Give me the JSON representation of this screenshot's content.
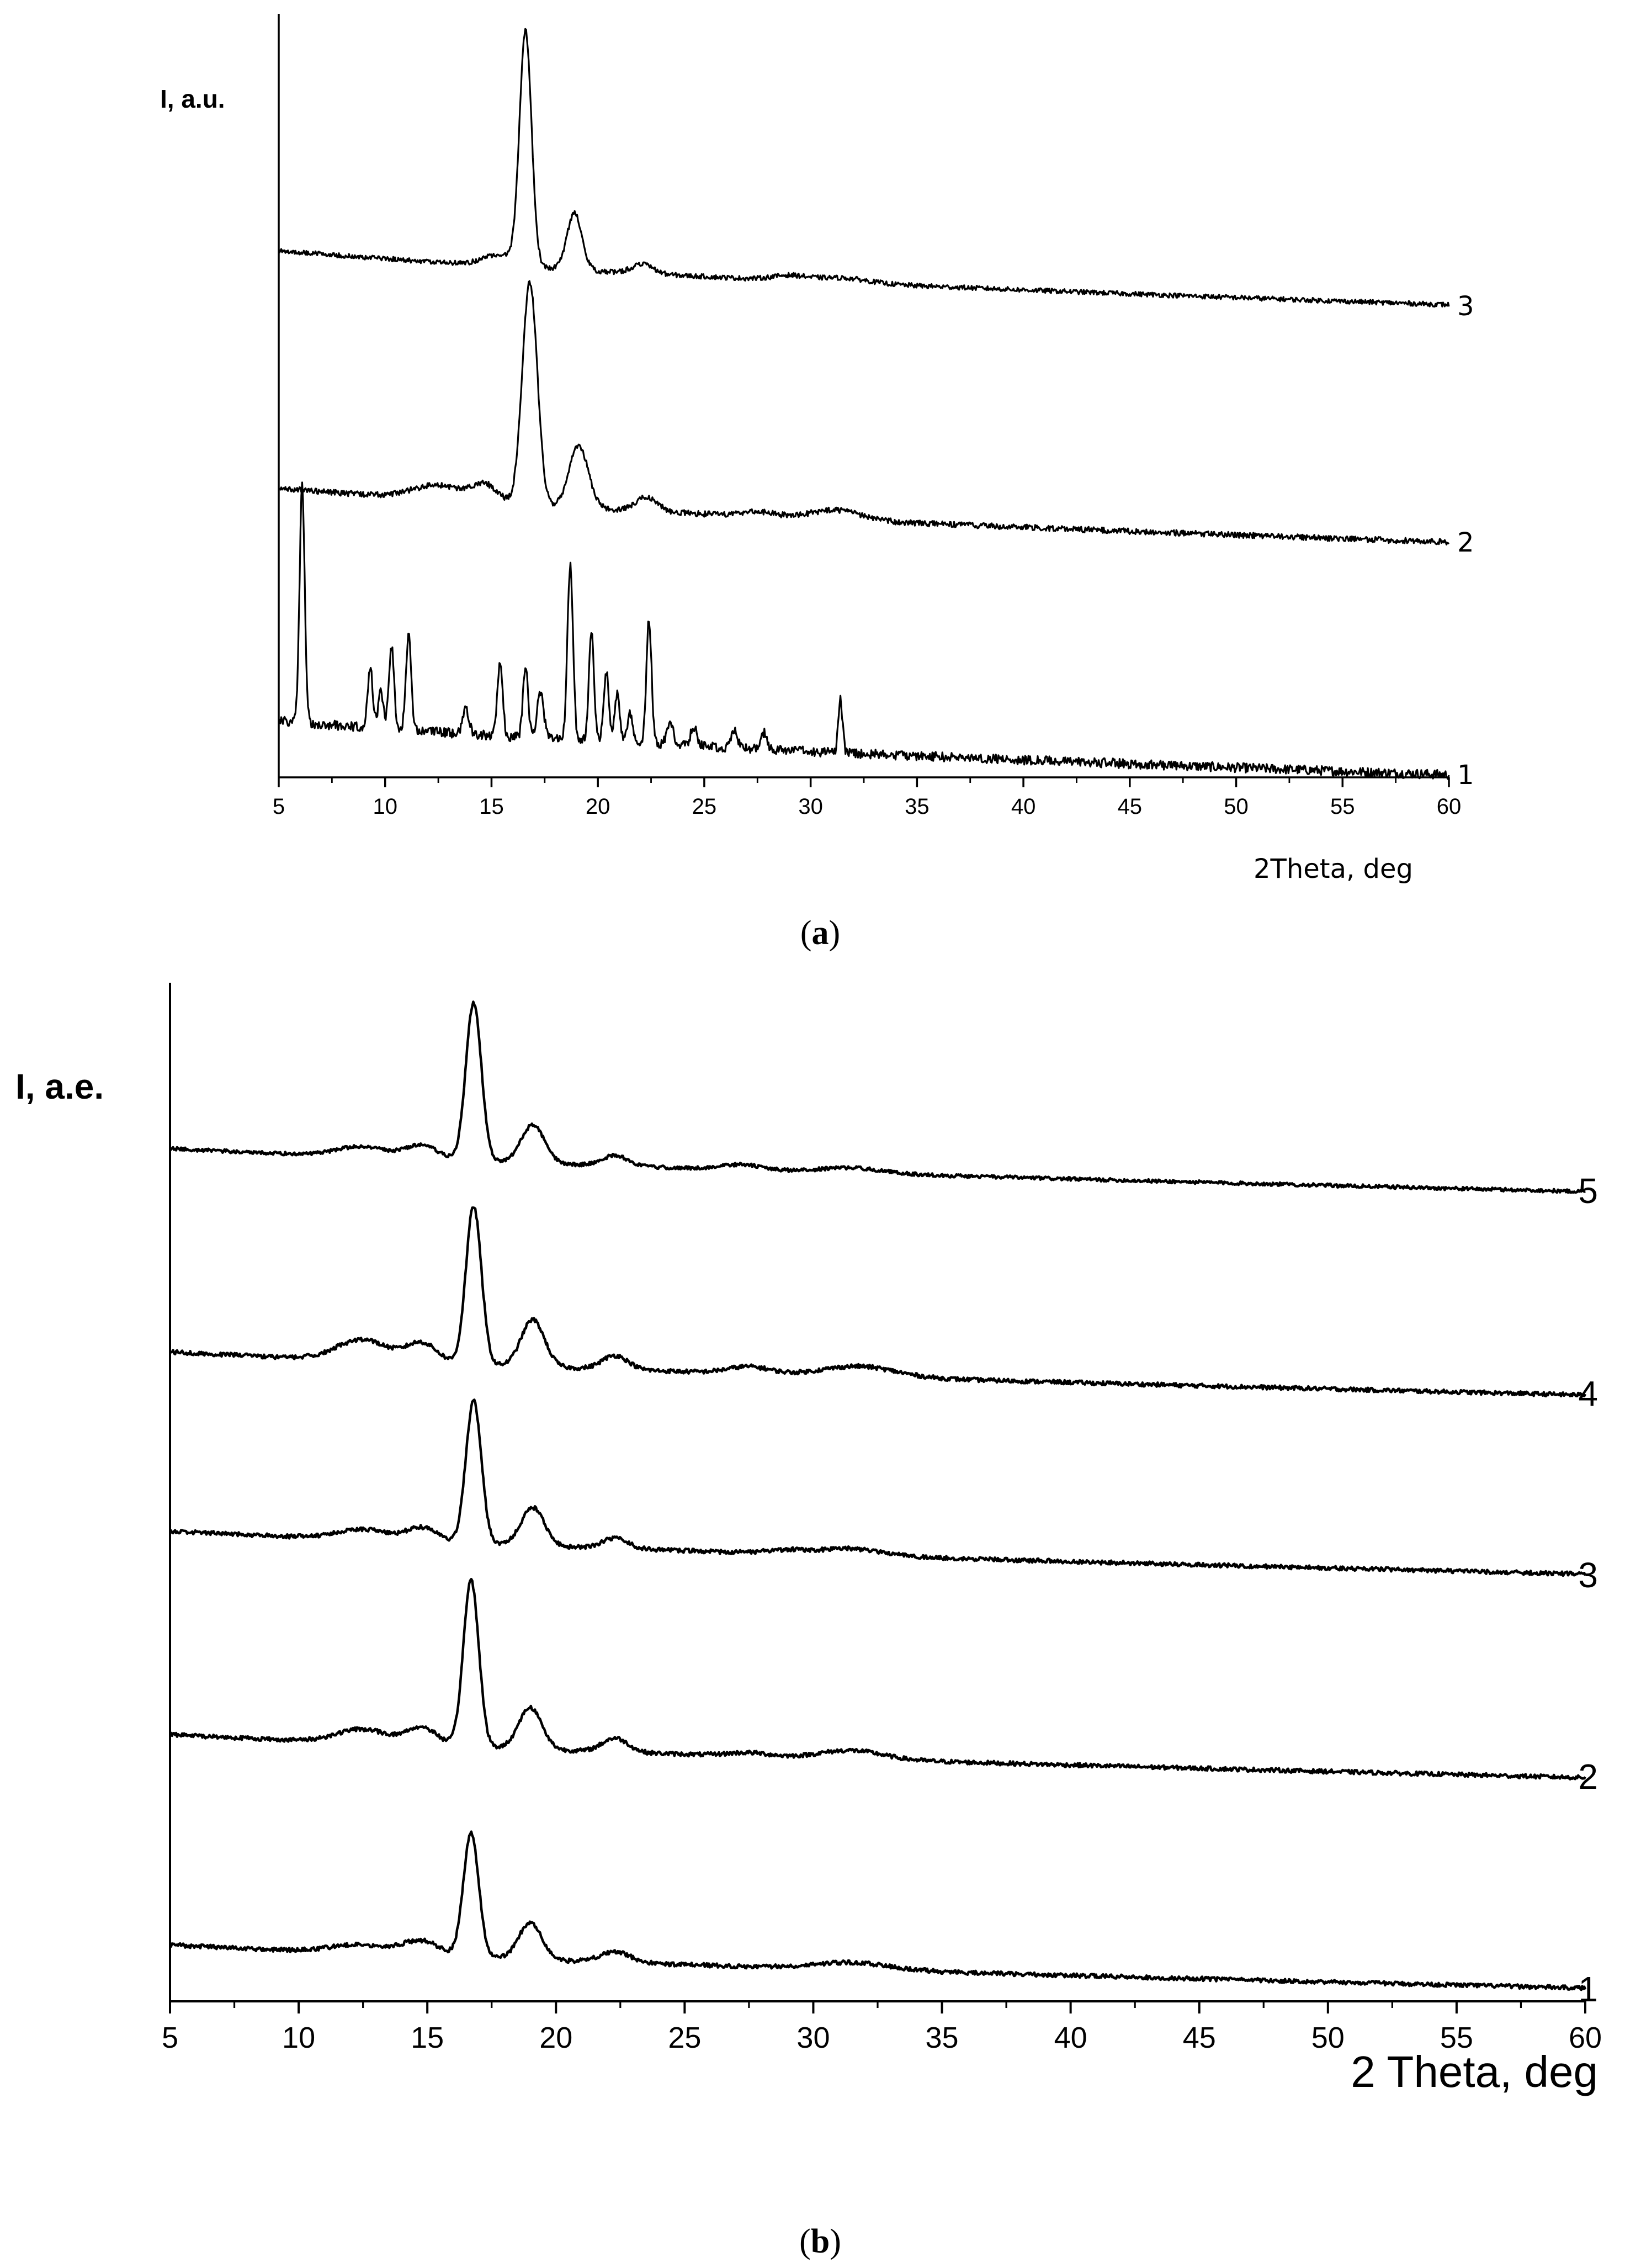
{
  "chart_data": [
    {
      "panel": "a",
      "type": "line",
      "ylabel": "I, a.u.",
      "xlabel": "2Theta, deg",
      "xlim": [
        5,
        60
      ],
      "xticks": [
        5,
        10,
        15,
        20,
        25,
        30,
        35,
        40,
        45,
        50,
        55,
        60
      ],
      "grid": false,
      "series": [
        {
          "name": "1",
          "offset": 0.0,
          "peaks": [
            [
              6.1,
              1.0,
              0.12
            ],
            [
              9.3,
              0.25,
              0.12
            ],
            [
              9.8,
              0.15,
              0.12
            ],
            [
              10.3,
              0.35,
              0.12
            ],
            [
              11.1,
              0.4,
              0.12
            ],
            [
              13.8,
              0.1,
              0.15
            ],
            [
              15.4,
              0.32,
              0.12
            ],
            [
              16.6,
              0.3,
              0.12
            ],
            [
              17.3,
              0.2,
              0.15
            ],
            [
              18.7,
              0.73,
              0.13
            ],
            [
              19.7,
              0.45,
              0.12
            ],
            [
              20.4,
              0.3,
              0.12
            ],
            [
              20.9,
              0.2,
              0.12
            ],
            [
              21.5,
              0.12,
              0.12
            ],
            [
              22.4,
              0.53,
              0.12
            ],
            [
              23.4,
              0.1,
              0.15
            ],
            [
              24.5,
              0.08,
              0.15
            ],
            [
              26.4,
              0.08,
              0.15
            ],
            [
              27.8,
              0.07,
              0.12
            ],
            [
              31.4,
              0.22,
              0.1
            ]
          ],
          "noise": 0.02
        },
        {
          "name": "2",
          "offset": 0.98,
          "peaks": [
            [
              12.5,
              0.06,
              1.2
            ],
            [
              14.7,
              0.07,
              0.6
            ],
            [
              16.8,
              0.94,
              0.35
            ],
            [
              19.1,
              0.26,
              0.45
            ],
            [
              22.3,
              0.06,
              0.5
            ],
            [
              27.5,
              0.02,
              0.8
            ],
            [
              31.2,
              0.04,
              1.2
            ]
          ],
          "noise": 0.012
        },
        {
          "name": "3",
          "offset": 1.98,
          "peaks": [
            [
              15.5,
              0.05,
              0.8
            ],
            [
              16.6,
              0.98,
              0.28
            ],
            [
              18.9,
              0.24,
              0.35
            ],
            [
              22.1,
              0.04,
              0.5
            ],
            [
              29.0,
              0.02,
              0.8
            ],
            [
              31.5,
              0.02,
              1.2
            ]
          ],
          "noise": 0.01
        }
      ]
    },
    {
      "panel": "b",
      "type": "line",
      "ylabel": "I, a.e.",
      "xlabel": "2 Theta, deg",
      "xlim": [
        5,
        60
      ],
      "xticks": [
        5,
        10,
        15,
        20,
        25,
        30,
        35,
        40,
        45,
        50,
        55,
        60
      ],
      "grid": false,
      "series": [
        {
          "name": "1",
          "offset": 0.0,
          "peaks": [
            [
              12.5,
              0.05,
              1.2
            ],
            [
              14.8,
              0.08,
              0.7
            ],
            [
              16.7,
              0.71,
              0.3
            ],
            [
              19.0,
              0.21,
              0.45
            ],
            [
              22.3,
              0.06,
              0.6
            ],
            [
              31.5,
              0.04,
              1.5
            ]
          ],
          "noise": 0.012
        },
        {
          "name": "2",
          "offset": 1.21,
          "peaks": [
            [
              12.5,
              0.08,
              1.0
            ],
            [
              14.8,
              0.1,
              0.6
            ],
            [
              16.7,
              0.96,
              0.3
            ],
            [
              19.0,
              0.24,
              0.45
            ],
            [
              22.3,
              0.08,
              0.5
            ],
            [
              27.5,
              0.02,
              0.8
            ],
            [
              31.5,
              0.05,
              1.2
            ]
          ],
          "noise": 0.012
        },
        {
          "name": "3",
          "offset": 2.38,
          "peaks": [
            [
              12.5,
              0.06,
              1.0
            ],
            [
              14.8,
              0.08,
              0.6
            ],
            [
              16.8,
              0.82,
              0.3
            ],
            [
              19.1,
              0.22,
              0.45
            ],
            [
              22.3,
              0.06,
              0.5
            ],
            [
              29.0,
              0.02,
              0.8
            ],
            [
              31.5,
              0.04,
              1.2
            ]
          ],
          "noise": 0.012
        },
        {
          "name": "4",
          "offset": 3.41,
          "peaks": [
            [
              12.5,
              0.12,
              1.0
            ],
            [
              14.8,
              0.11,
              0.6
            ],
            [
              16.8,
              0.91,
              0.3
            ],
            [
              19.1,
              0.27,
              0.45
            ],
            [
              22.3,
              0.08,
              0.5
            ],
            [
              27.5,
              0.04,
              0.8
            ],
            [
              31.8,
              0.06,
              1.4
            ]
          ],
          "noise": 0.012
        },
        {
          "name": "5",
          "offset": 4.58,
          "peaks": [
            [
              12.5,
              0.06,
              1.0
            ],
            [
              14.8,
              0.08,
              0.6
            ],
            [
              16.8,
              0.91,
              0.3
            ],
            [
              19.1,
              0.22,
              0.45
            ],
            [
              22.3,
              0.06,
              0.5
            ],
            [
              27.2,
              0.03,
              0.8
            ],
            [
              31.5,
              0.03,
              1.2
            ]
          ],
          "noise": 0.01
        }
      ]
    }
  ],
  "captions": {
    "a": {
      "open": "(",
      "letter": "a",
      "close": ")"
    },
    "b": {
      "open": "(",
      "letter": "b",
      "close": ")"
    }
  }
}
